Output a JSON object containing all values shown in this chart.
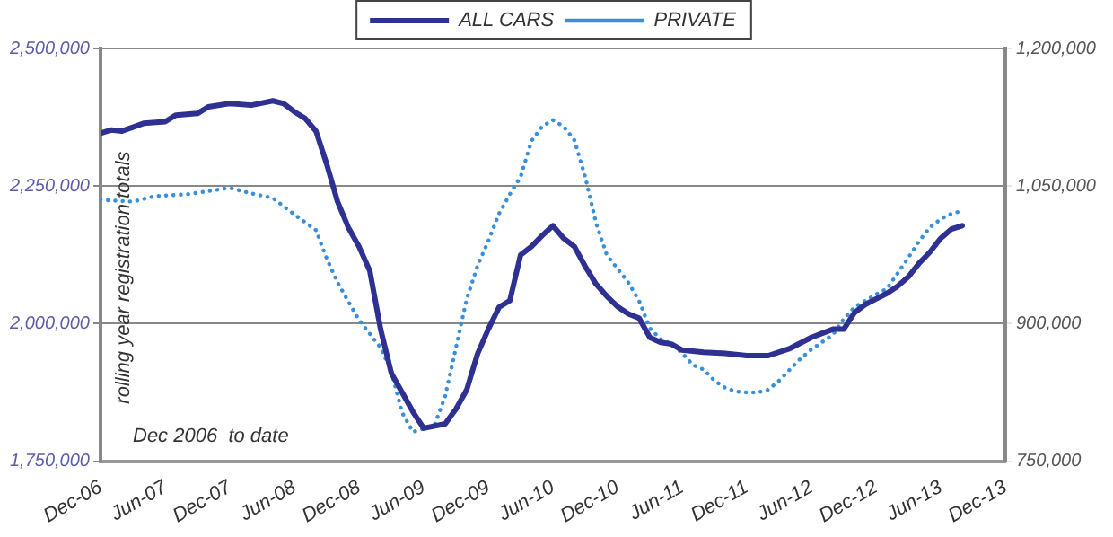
{
  "chart_data": {
    "type": "line",
    "ylabel": "rolling year registration totals",
    "annotations": [
      "Dec 2006  to date"
    ],
    "legend": "top",
    "grid": "y",
    "marker": "none",
    "xlim": [
      "2006-12",
      "2013-12"
    ],
    "xticks": [
      {
        "value": "2006-12",
        "label": "Dec-06"
      },
      {
        "value": "2007-06",
        "label": "Jun-07"
      },
      {
        "value": "2007-12",
        "label": "Dec-07"
      },
      {
        "value": "2008-06",
        "label": "Jun-08"
      },
      {
        "value": "2008-12",
        "label": "Dec-08"
      },
      {
        "value": "2009-06",
        "label": "Jun-09"
      },
      {
        "value": "2009-12",
        "label": "Dec-09"
      },
      {
        "value": "2010-06",
        "label": "Jun-10"
      },
      {
        "value": "2010-12",
        "label": "Dec-10"
      },
      {
        "value": "2011-06",
        "label": "Jun-11"
      },
      {
        "value": "2011-12",
        "label": "Dec-11"
      },
      {
        "value": "2012-06",
        "label": "Jun-12"
      },
      {
        "value": "2012-12",
        "label": "Dec-12"
      },
      {
        "value": "2013-06",
        "label": "Jun-13"
      },
      {
        "value": "2013-12",
        "label": "Dec-13"
      }
    ],
    "ylim": [
      1750000,
      2500000
    ],
    "yticks": [
      {
        "value": 1750000,
        "label": "1,750,000"
      },
      {
        "value": 2000000,
        "label": "2,000,000"
      },
      {
        "value": 2250000,
        "label": "2,250,000"
      },
      {
        "value": 2500000,
        "label": "2,500,000"
      }
    ],
    "y2lim": [
      750000,
      1200000
    ],
    "y2ticks": [
      {
        "value": 750000,
        "label": "750,000"
      },
      {
        "value": 900000,
        "label": "900,000"
      },
      {
        "value": 1050000,
        "label": "1,050,000"
      },
      {
        "value": 1200000,
        "label": "1,200,000"
      }
    ],
    "series": [
      {
        "name": "ALL CARS",
        "color": "#2e3192",
        "line_style": "solid",
        "x": [
          "2006-12",
          "2007-01",
          "2007-02",
          "2007-04",
          "2007-06",
          "2007-07",
          "2007-09",
          "2007-10",
          "2007-12",
          "2008-02",
          "2008-04",
          "2008-05",
          "2008-06",
          "2008-07",
          "2008-08",
          "2008-09",
          "2008-10",
          "2008-11",
          "2008-12",
          "2009-01",
          "2009-02",
          "2009-03",
          "2009-04",
          "2009-05",
          "2009-06",
          "2009-08",
          "2009-09",
          "2009-10",
          "2009-11",
          "2009-12",
          "2010-01",
          "2010-02",
          "2010-03",
          "2010-04",
          "2010-05",
          "2010-06",
          "2010-07",
          "2010-08",
          "2010-09",
          "2010-10",
          "2010-11",
          "2010-12",
          "2011-01",
          "2011-02",
          "2011-03",
          "2011-04",
          "2011-05",
          "2011-06",
          "2011-08",
          "2011-10",
          "2011-12",
          "2012-02",
          "2012-04",
          "2012-06",
          "2012-08",
          "2012-09",
          "2012-10",
          "2012-11",
          "2012-12",
          "2013-01",
          "2013-02",
          "2013-03",
          "2013-04",
          "2013-05",
          "2013-06",
          "2013-07",
          "2013-08"
        ],
        "values": [
          2346000,
          2352000,
          2350000,
          2364000,
          2367000,
          2379000,
          2382000,
          2394000,
          2400000,
          2397000,
          2405000,
          2400000,
          2385000,
          2373000,
          2350000,
          2290000,
          2222000,
          2175000,
          2140000,
          2096000,
          1990000,
          1910000,
          1875000,
          1840000,
          1810000,
          1818000,
          1845000,
          1880000,
          1945000,
          1990000,
          2030000,
          2042000,
          2125000,
          2140000,
          2160000,
          2178000,
          2155000,
          2140000,
          2104000,
          2072000,
          2050000,
          2031000,
          2018000,
          2010000,
          1975000,
          1966000,
          1963000,
          1952000,
          1948000,
          1946000,
          1942000,
          1942000,
          1955000,
          1975000,
          1990000,
          1990000,
          2020000,
          2035000,
          2045000,
          2055000,
          2068000,
          2085000,
          2110000,
          2130000,
          2155000,
          2172000,
          2178000
        ]
      },
      {
        "name": "PRIVATE",
        "color": "#3a8fd9",
        "line_style": "dotted",
        "axis": "y2",
        "x": [
          "2006-12",
          "2007-03",
          "2007-05",
          "2007-08",
          "2007-12",
          "2008-02",
          "2008-04",
          "2008-06",
          "2008-08",
          "2008-09",
          "2008-10",
          "2008-12",
          "2009-02",
          "2009-03",
          "2009-04",
          "2009-05",
          "2009-07",
          "2009-08",
          "2009-09",
          "2009-10",
          "2009-11",
          "2009-12",
          "2010-01",
          "2010-02",
          "2010-03",
          "2010-04",
          "2010-05",
          "2010-06",
          "2010-07",
          "2010-08",
          "2010-09",
          "2010-10",
          "2010-11",
          "2010-12",
          "2011-01",
          "2011-02",
          "2011-03",
          "2011-04",
          "2011-05",
          "2011-06",
          "2011-07",
          "2011-08",
          "2011-09",
          "2011-10",
          "2011-11",
          "2011-12",
          "2012-01",
          "2012-02",
          "2012-03",
          "2012-04",
          "2012-05",
          "2012-06",
          "2012-07",
          "2012-08",
          "2012-09",
          "2012-10",
          "2012-11",
          "2012-12",
          "2013-01",
          "2013-02",
          "2013-03",
          "2013-04",
          "2013-05",
          "2013-06",
          "2013-07",
          "2013-08"
        ],
        "values": [
          1035000,
          1033000,
          1039000,
          1041000,
          1048000,
          1042000,
          1037000,
          1019000,
          1002000,
          971000,
          945000,
          904000,
          874000,
          848000,
          803000,
          782000,
          789000,
          821000,
          874000,
          927000,
          963000,
          990000,
          1020000,
          1041000,
          1060000,
          1099000,
          1115000,
          1122000,
          1115000,
          1100000,
          1060000,
          1010000,
          975000,
          960000,
          945000,
          925000,
          895000,
          883000,
          878000,
          868000,
          855000,
          850000,
          838000,
          830000,
          826000,
          825000,
          825000,
          828000,
          838000,
          850000,
          862000,
          872000,
          880000,
          888000,
          905000,
          918000,
          925000,
          932000,
          938000,
          955000,
          972000,
          990000,
          1005000,
          1014000,
          1020000,
          1023000
        ]
      }
    ]
  }
}
